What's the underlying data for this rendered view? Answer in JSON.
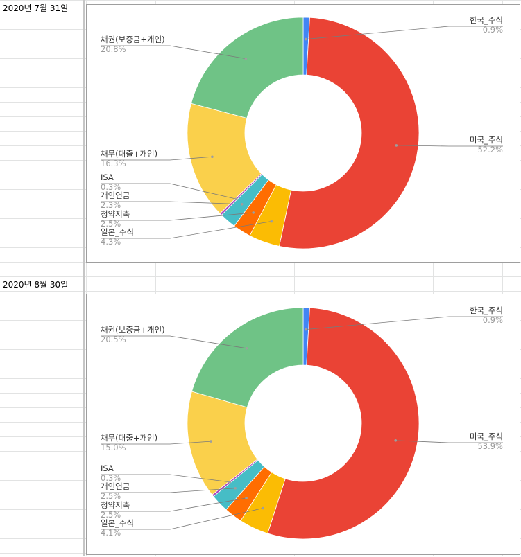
{
  "chart_data": [
    {
      "type": "pie",
      "date_label": "2020년 7월 31일",
      "donut": true,
      "slices": [
        {
          "label": "한국_주식",
          "value": 0.9,
          "pct": "0.9%",
          "color": "#4285f4"
        },
        {
          "label": "미국_주식",
          "value": 52.2,
          "pct": "52.2%",
          "color": "#ea4335"
        },
        {
          "label": "일본_주식",
          "value": 4.3,
          "pct": "4.3%",
          "color": "#fbbc04"
        },
        {
          "label": "청약저축",
          "value": 2.5,
          "pct": "2.5%",
          "color": "#ff6d01"
        },
        {
          "label": "개인연금",
          "value": 2.3,
          "pct": "2.3%",
          "color": "#46bdc6"
        },
        {
          "label": "ISA",
          "value": 0.3,
          "pct": "0.3%",
          "color": "#ab47bc"
        },
        {
          "label": "채무(대출+개인)",
          "value": 16.3,
          "pct": "16.3%",
          "color": "#fad04b"
        },
        {
          "label": "채권(보증금+개인)",
          "value": 20.8,
          "pct": "20.8%",
          "color": "#6fc386"
        }
      ]
    },
    {
      "type": "pie",
      "date_label": "2020년 8월 30일",
      "donut": true,
      "slices": [
        {
          "label": "한국_주식",
          "value": 0.9,
          "pct": "0.9%",
          "color": "#4285f4"
        },
        {
          "label": "미국_주식",
          "value": 53.9,
          "pct": "53.9%",
          "color": "#ea4335"
        },
        {
          "label": "일본_주식",
          "value": 4.1,
          "pct": "4.1%",
          "color": "#fbbc04"
        },
        {
          "label": "청약저축",
          "value": 2.5,
          "pct": "2.5%",
          "color": "#ff6d01"
        },
        {
          "label": "개인연금",
          "value": 2.5,
          "pct": "2.5%",
          "color": "#46bdc6"
        },
        {
          "label": "ISA",
          "value": 0.3,
          "pct": "0.3%",
          "color": "#ab47bc"
        },
        {
          "label": "채무(대출+개인)",
          "value": 15.0,
          "pct": "15.0%",
          "color": "#fad04b"
        },
        {
          "label": "채권(보증금+개인)",
          "value": 20.5,
          "pct": "20.5%",
          "color": "#6fc386"
        }
      ]
    }
  ]
}
